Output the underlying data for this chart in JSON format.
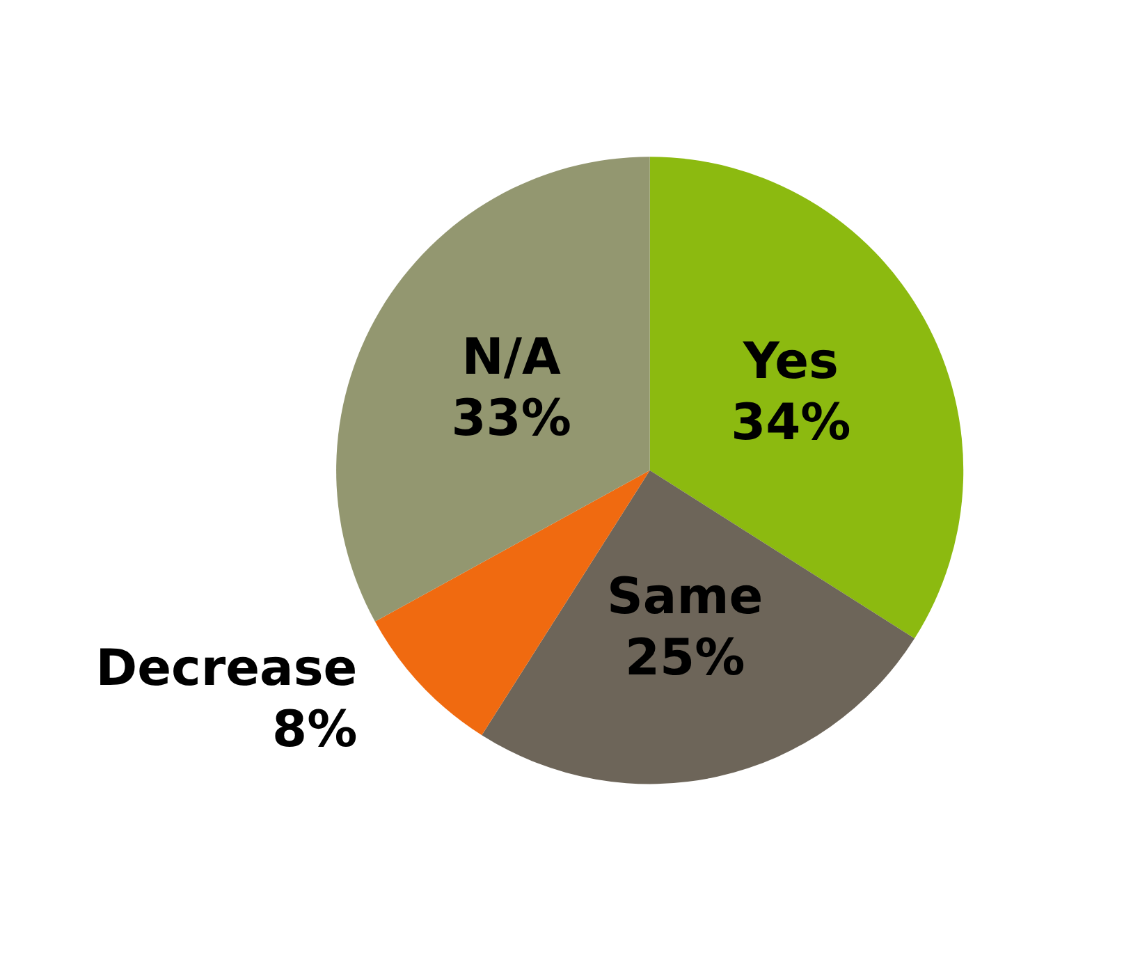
{
  "chart_data": {
    "type": "pie",
    "categories": [
      "Yes",
      "Same",
      "Decrease",
      "N/A"
    ],
    "values": [
      34,
      25,
      8,
      33
    ],
    "colors": [
      "#8cba10",
      "#6d6559",
      "#f06a10",
      "#939770"
    ],
    "value_labels": [
      "34%",
      "25%",
      "8%",
      "33%"
    ]
  }
}
